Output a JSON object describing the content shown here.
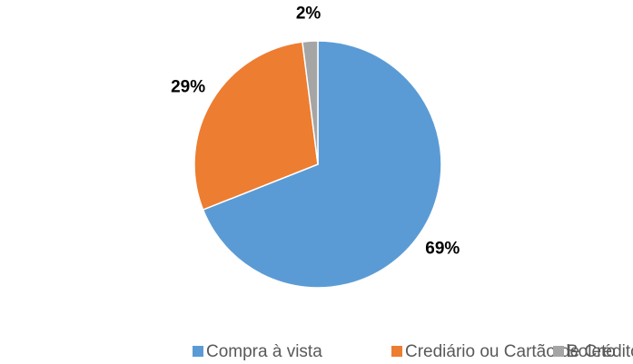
{
  "chart_data": {
    "type": "pie",
    "categories": [
      "Compra à vista",
      "Crediário ou Cartão de Crédito",
      "Boleto"
    ],
    "values": [
      69,
      29,
      2
    ],
    "value_labels": [
      "69%",
      "29%",
      "2%"
    ],
    "colors": [
      "#5b9bd5",
      "#ed7d31",
      "#a5a5a5"
    ],
    "legend": "bottom"
  }
}
